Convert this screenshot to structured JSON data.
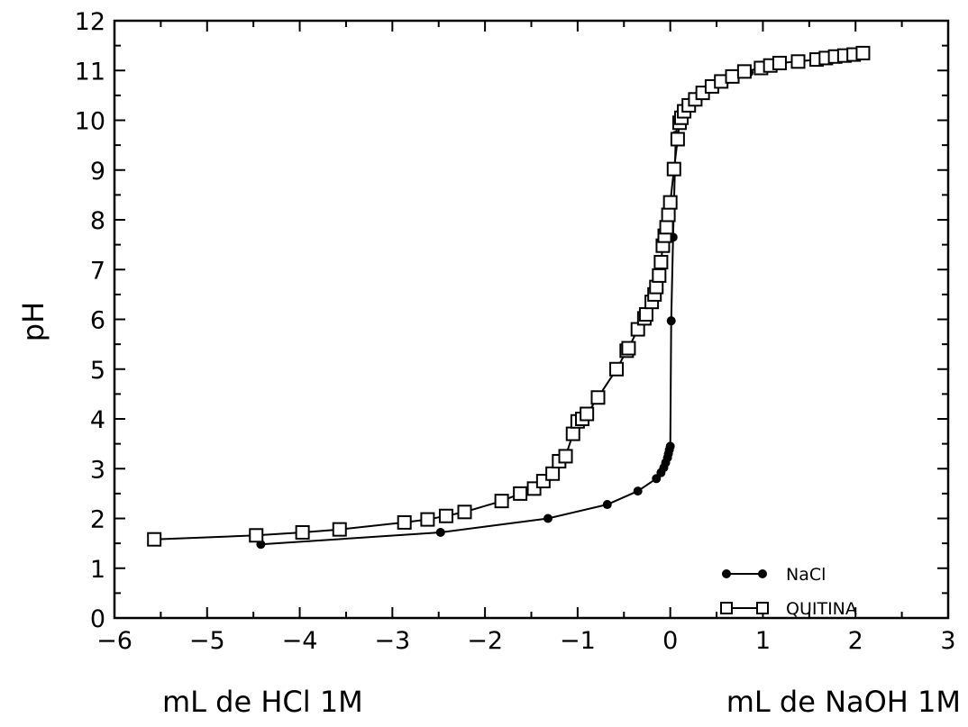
{
  "chart_data": {
    "type": "line",
    "xlabel_left": "mL de HCl 1M",
    "xlabel_right": "mL de NaOH 1M",
    "ylabel": "pH",
    "xlim": [
      -6,
      3
    ],
    "ylim": [
      0,
      12
    ],
    "x_ticks": [
      "−6",
      "−5",
      "−4",
      "−3",
      "−2",
      "−1",
      "0",
      "1",
      "2",
      "3"
    ],
    "y_ticks": [
      "0",
      "1",
      "2",
      "3",
      "4",
      "5",
      "6",
      "7",
      "8",
      "9",
      "10",
      "11",
      "12"
    ],
    "grid": false,
    "legend_position": "bottom-right",
    "series": [
      {
        "name": "NaCl",
        "marker": "filled-circle",
        "points": [
          [
            -4.42,
            1.48
          ],
          [
            -2.48,
            1.72
          ],
          [
            -1.32,
            2.0
          ],
          [
            -0.68,
            2.28
          ],
          [
            -0.35,
            2.55
          ],
          [
            -0.15,
            2.8
          ],
          [
            -0.1,
            2.92
          ],
          [
            -0.07,
            3.02
          ],
          [
            -0.05,
            3.12
          ],
          [
            -0.03,
            3.22
          ],
          [
            -0.02,
            3.3
          ],
          [
            -0.01,
            3.38
          ],
          [
            0.0,
            3.45
          ],
          [
            0.01,
            5.97
          ],
          [
            0.03,
            7.65
          ],
          [
            0.05,
            9.0
          ],
          [
            0.06,
            9.7
          ],
          [
            0.08,
            9.95
          ],
          [
            0.1,
            10.05
          ],
          [
            0.13,
            10.15
          ],
          [
            0.17,
            10.28
          ],
          [
            0.22,
            10.38
          ],
          [
            0.3,
            10.5
          ],
          [
            0.4,
            10.62
          ],
          [
            0.5,
            10.72
          ],
          [
            0.6,
            10.8
          ],
          [
            0.7,
            10.87
          ],
          [
            0.85,
            10.96
          ]
        ]
      },
      {
        "name": "QUITINA",
        "marker": "open-square",
        "points": [
          [
            -5.57,
            1.58
          ],
          [
            -4.47,
            1.66
          ],
          [
            -3.97,
            1.72
          ],
          [
            -3.57,
            1.78
          ],
          [
            -2.87,
            1.92
          ],
          [
            -2.62,
            1.98
          ],
          [
            -2.42,
            2.05
          ],
          [
            -2.22,
            2.13
          ],
          [
            -1.82,
            2.35
          ],
          [
            -1.62,
            2.5
          ],
          [
            -1.47,
            2.6
          ],
          [
            -1.37,
            2.75
          ],
          [
            -1.27,
            2.9
          ],
          [
            -1.2,
            3.15
          ],
          [
            -1.13,
            3.25
          ],
          [
            -1.05,
            3.7
          ],
          [
            -1.0,
            3.95
          ],
          [
            -0.95,
            4.0
          ],
          [
            -0.9,
            4.1
          ],
          [
            -0.78,
            4.43
          ],
          [
            -0.58,
            5.0
          ],
          [
            -0.47,
            5.37
          ],
          [
            -0.45,
            5.42
          ],
          [
            -0.35,
            5.8
          ],
          [
            -0.28,
            6.02
          ],
          [
            -0.26,
            6.1
          ],
          [
            -0.2,
            6.35
          ],
          [
            -0.17,
            6.5
          ],
          [
            -0.15,
            6.65
          ],
          [
            -0.12,
            6.88
          ],
          [
            -0.1,
            7.15
          ],
          [
            -0.08,
            7.48
          ],
          [
            -0.06,
            7.68
          ],
          [
            -0.04,
            7.85
          ],
          [
            -0.02,
            8.1
          ],
          [
            0.0,
            8.35
          ],
          [
            0.04,
            9.02
          ],
          [
            0.08,
            9.62
          ],
          [
            0.1,
            9.95
          ],
          [
            0.12,
            10.05
          ],
          [
            0.15,
            10.18
          ],
          [
            0.2,
            10.3
          ],
          [
            0.27,
            10.42
          ],
          [
            0.35,
            10.55
          ],
          [
            0.45,
            10.68
          ],
          [
            0.55,
            10.78
          ],
          [
            0.67,
            10.88
          ],
          [
            0.8,
            10.98
          ],
          [
            0.98,
            11.05
          ],
          [
            1.08,
            11.1
          ],
          [
            1.18,
            11.15
          ],
          [
            1.38,
            11.18
          ],
          [
            1.58,
            11.22
          ],
          [
            1.68,
            11.25
          ],
          [
            1.78,
            11.28
          ],
          [
            1.88,
            11.3
          ],
          [
            1.98,
            11.32
          ],
          [
            2.08,
            11.35
          ]
        ]
      }
    ]
  }
}
